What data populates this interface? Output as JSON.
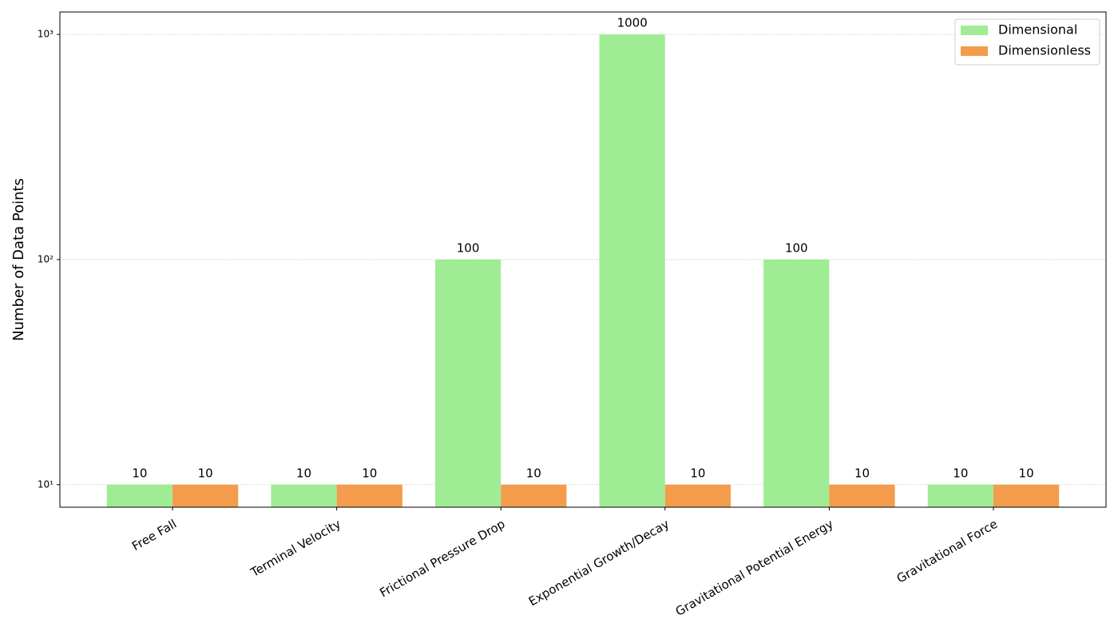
{
  "chart_data": {
    "type": "bar",
    "y_label": "Number of Data Points",
    "categories": [
      "Free Fall",
      "Terminal Velocity",
      "Frictional Pressure Drop",
      "Exponential Growth/Decay",
      "Gravitational Potential Energy",
      "Gravitational Force"
    ],
    "series": [
      {
        "name": "Dimensional",
        "color": "#a0ec94",
        "values": [
          10,
          10,
          100,
          1000,
          100,
          10
        ]
      },
      {
        "name": "Dimensionless",
        "color": "#f39c4c",
        "values": [
          10,
          10,
          10,
          10,
          10,
          10
        ]
      }
    ],
    "yscale": "log",
    "ylim": [
      7.94,
      1258
    ],
    "yticks": [
      {
        "value": 10,
        "label": "10¹"
      },
      {
        "value": 100,
        "label": "10²"
      },
      {
        "value": 1000,
        "label": "10³"
      }
    ],
    "grid": true,
    "legend": "upper right",
    "data_labels": true
  }
}
